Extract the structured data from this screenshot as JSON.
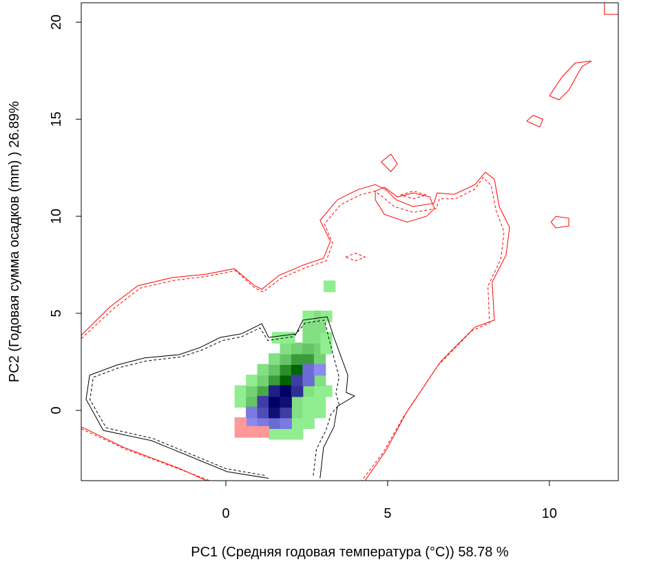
{
  "chart_data": {
    "type": "niche",
    "xlabel": "PC1 (Средняя годовая температура (°C)) 58.78 %",
    "ylabel": "PC2 (Годовая сумма осадков  (mm) ) 26.89%",
    "xlim": [
      -4.47,
      12.13
    ],
    "ylim": [
      -3.62,
      21.0
    ],
    "xticks": [
      0,
      5,
      10
    ],
    "yticks": [
      0,
      5,
      10,
      15,
      20
    ],
    "tiles": [
      {
        "color": "#90ee90",
        "dark": "#006400",
        "x": [
          1.5,
          1.85,
          2.2,
          1.15,
          1.5,
          1.85,
          2.2,
          2.55,
          0.8,
          1.15,
          1.5,
          1.85,
          2.2,
          2.55,
          2.9,
          0.45,
          0.8,
          1.15,
          1.5,
          1.85,
          2.2,
          2.55,
          2.9,
          0.45,
          0.8,
          1.15,
          1.5,
          1.85,
          2.2,
          2.55,
          2.9,
          3.1,
          0.8,
          1.15,
          1.5,
          1.85,
          2.2,
          2.55,
          2.9,
          1.15,
          1.5,
          1.85,
          2.2,
          2.55,
          2.9,
          1.5,
          1.85,
          2.2,
          2.55,
          2.9,
          1.85,
          2.2,
          2.55,
          2.9,
          3.1,
          1.6,
          1.95,
          2.55,
          2.9,
          3.1,
          2.55,
          2.9,
          2.55,
          2.9,
          3.1,
          3.2
        ],
        "y": [
          -1.2,
          -1.2,
          -1.2,
          -0.65,
          -0.65,
          -0.65,
          -0.65,
          -0.65,
          -0.1,
          -0.1,
          -0.1,
          -0.1,
          -0.1,
          -0.1,
          -0.1,
          0.45,
          0.45,
          0.45,
          0.45,
          0.45,
          0.45,
          0.45,
          0.45,
          1.0,
          1.0,
          1.0,
          1.0,
          1.0,
          1.0,
          1.0,
          1.0,
          1.0,
          1.55,
          1.55,
          1.55,
          1.55,
          1.55,
          1.55,
          1.55,
          2.1,
          2.1,
          2.1,
          2.1,
          2.1,
          2.1,
          2.65,
          2.65,
          2.65,
          2.65,
          2.65,
          3.2,
          3.2,
          3.2,
          3.2,
          3.2,
          3.75,
          3.75,
          3.75,
          3.75,
          3.75,
          4.3,
          4.3,
          4.85,
          4.85,
          4.85,
          6.4
        ],
        "values": [
          0,
          0,
          0,
          0.1,
          0.2,
          0.1,
          0,
          0,
          0.1,
          0.3,
          0.4,
          0.2,
          0.1,
          0,
          0,
          0,
          0.3,
          0.7,
          0.6,
          0.3,
          0.1,
          0,
          0,
          0,
          0.2,
          0.5,
          0.9,
          0.7,
          0.4,
          0.1,
          0,
          0,
          0,
          0.2,
          0.6,
          1.0,
          0.8,
          0.4,
          0.1,
          0.1,
          0.3,
          0.7,
          1.0,
          0.7,
          0.2,
          0.1,
          0.3,
          0.6,
          0.6,
          0.2,
          0.1,
          0.2,
          0.3,
          0.2,
          0,
          0,
          0,
          0.1,
          0.1,
          0,
          0.1,
          0.1,
          0,
          0.1,
          0,
          0
        ]
      },
      {
        "color": "#9999ff",
        "dark": "#000066",
        "x": [
          0.45,
          0.8,
          1.15,
          1.5,
          1.85,
          0.8,
          1.15,
          1.5,
          1.85,
          1.15,
          1.5,
          1.85,
          1.5,
          1.85,
          2.2,
          2.2,
          2.55,
          2.55,
          2.9
        ],
        "y": [
          -0.65,
          -0.65,
          -0.65,
          -0.65,
          -0.65,
          -0.1,
          -0.1,
          -0.1,
          -0.1,
          0.45,
          0.45,
          0.45,
          1.0,
          1.0,
          1.0,
          1.55,
          1.55,
          2.1,
          2.1
        ],
        "values": [
          0,
          0.1,
          0.2,
          0.3,
          0.2,
          0.2,
          0.5,
          0.9,
          0.6,
          0.6,
          1.0,
          0.9,
          0.8,
          1.0,
          0.7,
          0.6,
          0.3,
          0.3,
          0.1
        ]
      },
      {
        "color": "#ff9999",
        "dark": "#ff9999",
        "x": [
          0.45,
          0.8,
          1.15,
          0.45
        ],
        "y": [
          -1.1,
          -1.1,
          -1.1,
          -0.65
        ],
        "values": [
          1,
          1,
          1,
          1
        ]
      }
    ],
    "contours": [
      {
        "color": "#ff0000",
        "dashed": false,
        "x": [
          -4.47,
          -3.57,
          -2.72,
          -1.66,
          -0.6,
          0.26,
          0.89,
          1.11,
          1.64,
          2.38,
          3.02,
          3.23,
          2.91,
          3.45,
          4.09,
          4.62,
          4.94,
          5.26,
          5.79,
          6.43,
          6.53,
          7.06,
          7.7,
          8.02,
          8.3,
          8.45,
          8.77,
          8.66,
          8.23,
          8.3,
          7.7,
          6.64,
          5.57,
          4.94,
          4.3
        ],
        "y": [
          3.87,
          5.35,
          6.42,
          6.84,
          7.02,
          7.3,
          6.42,
          6.24,
          6.95,
          7.48,
          7.84,
          8.72,
          9.79,
          10.85,
          11.38,
          11.63,
          11.38,
          10.85,
          10.5,
          10.67,
          11.2,
          11.13,
          11.63,
          12.27,
          11.91,
          10.5,
          9.43,
          8.01,
          6.6,
          4.65,
          4.29,
          2.52,
          -0.14,
          -2.09,
          -3.62
        ]
      },
      {
        "color": "#ff0000",
        "dashed": false,
        "x": [
          -4.47,
          -3.15,
          -1.45,
          -0.6
        ],
        "y": [
          -0.85,
          -1.91,
          -2.98,
          -3.62
        ]
      },
      {
        "color": "#ff0000",
        "dashed": false,
        "x": [
          4.62,
          4.62,
          4.9,
          5.3,
          5.8,
          6.3,
          6.45,
          6.2,
          5.6,
          4.9,
          4.62
        ],
        "y": [
          10.85,
          11.3,
          11.5,
          11.0,
          11.2,
          11.0,
          10.4,
          10.0,
          9.7,
          10.1,
          10.85
        ]
      },
      {
        "color": "#ff0000",
        "dashed": false,
        "x": [
          4.8,
          5.1,
          5.3,
          5.1,
          4.8
        ],
        "y": [
          12.8,
          13.2,
          12.7,
          12.3,
          12.8
        ]
      },
      {
        "color": "#ff0000",
        "dashed": false,
        "x": [
          9.3,
          9.5,
          9.8,
          9.7,
          9.3
        ],
        "y": [
          14.9,
          15.2,
          15.0,
          14.6,
          14.9
        ]
      },
      {
        "color": "#ff0000",
        "dashed": false,
        "x": [
          10.05,
          10.2,
          10.6,
          10.6,
          10.2,
          10.05
        ],
        "y": [
          9.7,
          10.0,
          9.9,
          9.5,
          9.4,
          9.7
        ]
      },
      {
        "color": "#ff0000",
        "dashed": false,
        "x": [
          10.0,
          10.3,
          10.6,
          11.0,
          11.3,
          10.8,
          10.4,
          10.0
        ],
        "y": [
          16.2,
          16.0,
          16.5,
          17.7,
          18.0,
          17.9,
          17.2,
          16.2
        ]
      },
      {
        "color": "#ff0000",
        "dashed": false,
        "x": [
          11.7,
          11.7,
          12.13
        ],
        "y": [
          21.0,
          20.4,
          20.4
        ]
      },
      {
        "color": "#ff0000",
        "dashed": true,
        "x": [
          -4.47,
          -3.5,
          -2.65,
          -1.6,
          -0.6,
          0.3,
          0.9,
          1.15,
          1.7,
          2.45,
          3.1,
          3.3,
          3.05,
          3.55,
          4.15,
          4.6,
          4.85,
          5.2,
          5.8,
          6.5,
          6.6,
          7.1,
          7.7,
          7.95,
          8.2,
          8.35,
          8.6,
          8.5,
          8.1,
          8.15,
          7.6,
          6.55,
          5.5,
          4.85,
          4.2
        ],
        "y": [
          3.7,
          5.2,
          6.3,
          6.7,
          6.9,
          7.2,
          6.3,
          6.1,
          6.8,
          7.35,
          7.7,
          8.6,
          9.6,
          10.6,
          11.1,
          11.3,
          11.0,
          10.5,
          10.2,
          10.4,
          10.9,
          10.9,
          11.4,
          12.0,
          11.6,
          10.3,
          9.2,
          7.8,
          6.4,
          4.5,
          4.1,
          2.3,
          -0.3,
          -2.2,
          -3.62
        ]
      },
      {
        "color": "#ff0000",
        "dashed": true,
        "x": [
          -4.47,
          -3.1,
          -1.4,
          -0.5
        ],
        "y": [
          -0.95,
          -2.0,
          -3.05,
          -3.62
        ]
      },
      {
        "color": "#ff0000",
        "dashed": true,
        "x": [
          5.4,
          5.8,
          6.2,
          5.8,
          5.4
        ],
        "y": [
          11.1,
          11.3,
          11.1,
          10.9,
          11.1
        ]
      },
      {
        "color": "#ff0000",
        "dashed": true,
        "x": [
          3.7,
          4.0,
          4.3,
          4.0,
          3.7
        ],
        "y": [
          7.9,
          8.1,
          7.9,
          7.7,
          7.9
        ]
      },
      {
        "color": "#000000",
        "dashed": false,
        "x": [
          1.32,
          0.04,
          -2.3,
          -3.79,
          -4.32,
          -4.21,
          -3.36,
          -2.51,
          -1.45,
          -0.81,
          -0.17,
          0.47,
          1.11,
          1.32,
          2.17,
          2.38,
          3.13,
          3.34,
          3.77,
          3.72,
          3.98,
          3.45,
          3.34,
          3.02,
          2.91
        ],
        "y": [
          -3.5,
          -3.16,
          -1.56,
          -1.03,
          0.57,
          1.81,
          2.34,
          2.7,
          2.87,
          3.23,
          3.76,
          3.94,
          4.47,
          3.76,
          3.94,
          4.65,
          4.82,
          3.76,
          1.81,
          0.92,
          0.74,
          0.21,
          -0.85,
          -1.91,
          -3.5
        ]
      },
      {
        "color": "#000000",
        "dashed": true,
        "x": [
          1.2,
          0.0,
          -2.25,
          -3.7,
          -4.2,
          -4.1,
          -3.3,
          -2.45,
          -1.4,
          -0.75,
          -0.1,
          0.5,
          1.05,
          1.3,
          2.1,
          2.45,
          3.05,
          3.2,
          3.5,
          3.4,
          3.5,
          3.25,
          3.1,
          2.8,
          2.7
        ],
        "y": [
          -3.35,
          -3.0,
          -1.45,
          -0.9,
          0.55,
          1.7,
          2.2,
          2.55,
          2.75,
          3.1,
          3.6,
          3.8,
          4.25,
          3.6,
          3.8,
          4.5,
          4.65,
          3.6,
          1.7,
          0.9,
          0.3,
          -0.2,
          -1.0,
          -2.0,
          -3.4
        ]
      }
    ]
  }
}
